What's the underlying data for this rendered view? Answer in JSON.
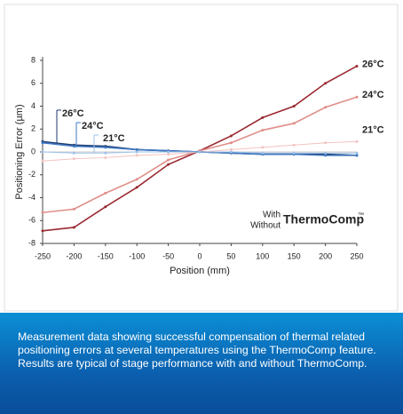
{
  "chart_data": {
    "type": "line",
    "y_label": "Positioning Error (µm)",
    "x_label": "Position (mm)",
    "x": [
      -250,
      -200,
      -150,
      -100,
      -50,
      0,
      50,
      100,
      150,
      200,
      250
    ],
    "xlim": [
      -250,
      250
    ],
    "xticks": [
      -250,
      -200,
      -150,
      -100,
      -50,
      0,
      50,
      100,
      150,
      200,
      250
    ],
    "ylim": [
      -8,
      8
    ],
    "yticks": [
      -8,
      -6,
      -4,
      -2,
      0,
      2,
      4,
      6,
      8
    ],
    "legend": {
      "with": "With",
      "without": "Without",
      "brand": "ThermoComp",
      "mark": "™"
    },
    "series": [
      {
        "label": "26°C",
        "color": "#9b2a32",
        "values": [
          -6.9,
          -6.6,
          -4.8,
          -3.1,
          -1.1,
          0.1,
          1.4,
          3.0,
          4.0,
          6.0,
          7.5
        ]
      },
      {
        "label": "24°C",
        "color": "#e08f8a",
        "values": [
          -5.3,
          -5.0,
          -3.6,
          -2.4,
          -0.7,
          0.1,
          0.8,
          1.9,
          2.5,
          3.9,
          4.8
        ]
      },
      {
        "label": "21°C",
        "color": "#f3c3c0",
        "values": [
          -0.8,
          -0.6,
          -0.5,
          -0.3,
          -0.2,
          0,
          0.2,
          0.4,
          0.6,
          0.8,
          0.9
        ]
      },
      {
        "label": "26°C",
        "color": "#1f3a6e",
        "values": [
          0.9,
          0.6,
          0.5,
          0.2,
          0.1,
          0,
          -0.1,
          -0.2,
          -0.2,
          -0.2,
          -0.3
        ]
      },
      {
        "label": "24°C",
        "color": "#3f78c0",
        "values": [
          0.8,
          0.5,
          0.4,
          0.2,
          0.1,
          0,
          -0.1,
          -0.2,
          -0.2,
          -0.3,
          -0.3
        ]
      },
      {
        "label": "21°C",
        "color": "#9dc1e8",
        "values": [
          0.0,
          -0.1,
          -0.1,
          0,
          0,
          0,
          0,
          -0.1,
          -0.1,
          -0.1,
          -0.1
        ]
      }
    ]
  },
  "caption": "Measurement data showing successful compensation of thermal related positioning errors at several temperatures using the ThermoComp feature. Results are typical of stage performance with and without ThermoComp."
}
